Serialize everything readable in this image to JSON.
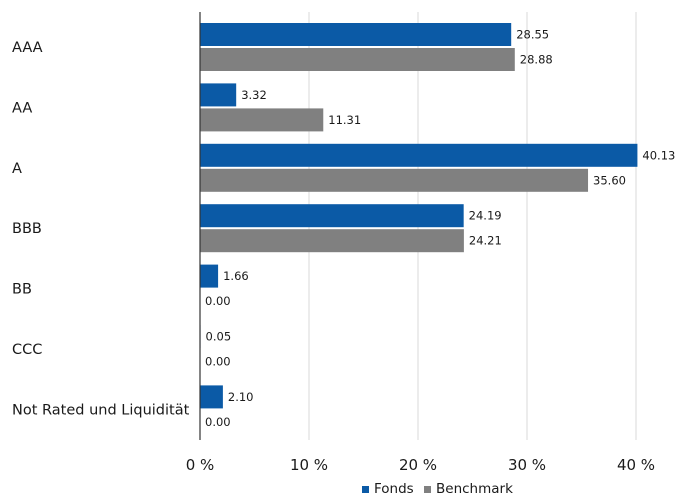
{
  "chart_data": {
    "type": "bar",
    "orientation": "horizontal",
    "title": "",
    "xlabel": "",
    "ylabel": "",
    "categories": [
      "AAA",
      "AA",
      "A",
      "BBB",
      "BB",
      "CCC",
      "Not Rated und Liquidität"
    ],
    "series": [
      {
        "name": "Fonds",
        "color": "#0b5aa6",
        "values": [
          28.55,
          3.32,
          40.13,
          24.19,
          1.66,
          0.05,
          2.1
        ],
        "labels": [
          "28.55",
          "3.32",
          "40.13",
          "24.19",
          "1.66",
          "0.05",
          "2.10"
        ]
      },
      {
        "name": "Benchmark",
        "color": "#808080",
        "values": [
          28.88,
          11.31,
          35.6,
          24.21,
          0.0,
          0.0,
          0.0
        ],
        "labels": [
          "28.88",
          "11.31",
          "35.60",
          "24.21",
          "0.00",
          "0.00",
          "0.00"
        ]
      }
    ],
    "xlim": [
      0,
      40
    ],
    "xticks": [
      0,
      10,
      20,
      30,
      40
    ],
    "xtick_labels": [
      "0 %",
      "10 %",
      "20 %",
      "30 %",
      "40 %"
    ],
    "grid": true,
    "legend_position": "bottom-right",
    "gridline_color": "#d9d9d9",
    "axis_color": "#333333"
  }
}
